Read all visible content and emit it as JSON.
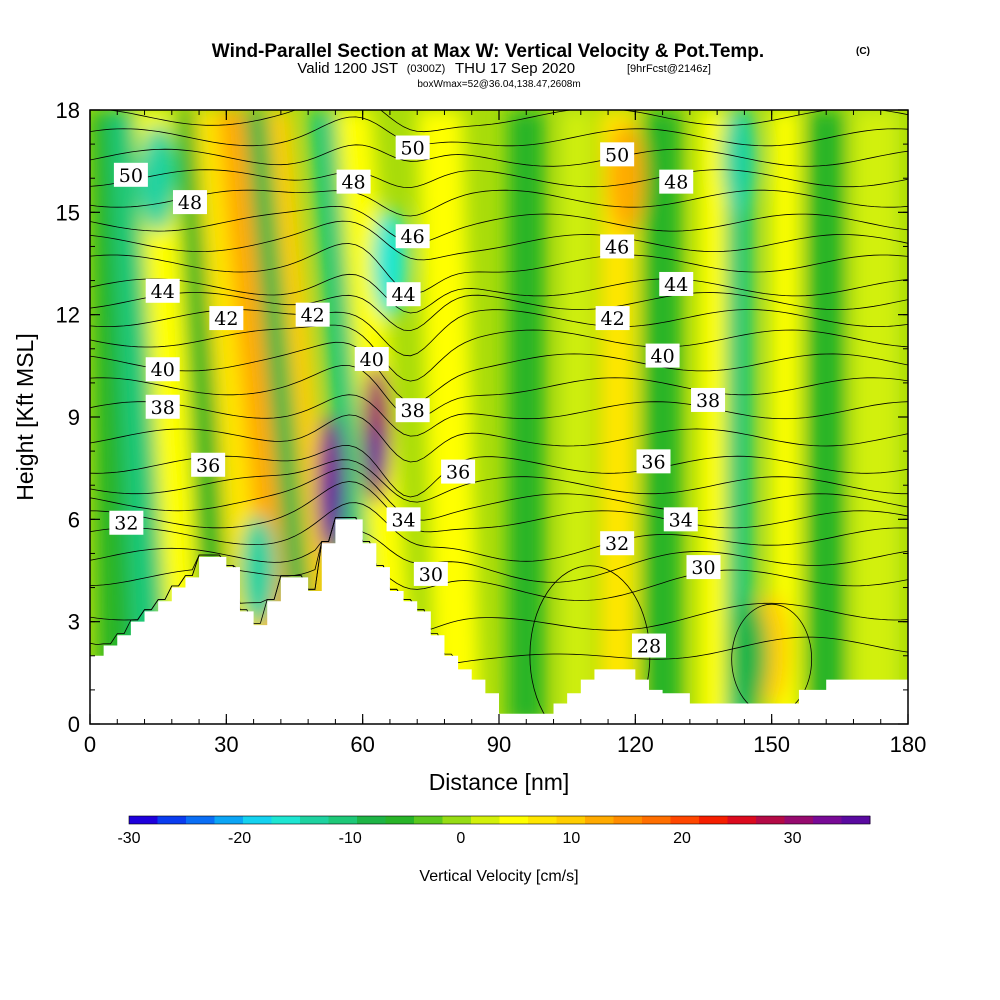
{
  "chart_data": {
    "type": "heatmap",
    "title": {
      "main": "Wind-Parallel Section at Max W: Vertical Velocity & Pot.Temp.",
      "copyright": "(C)",
      "valid_prefix": "Valid 1200 JST",
      "utc": "(0300Z)",
      "valid_date": "THU 17 Sep 2020",
      "forecast": "[9hrFcst@2146z]",
      "box_info": "boxWmax=52@36.04,138.47,2608m"
    },
    "xlabel": "Distance [nm]",
    "ylabel": "Height [Kft MSL]",
    "xlim": [
      0,
      180
    ],
    "ylim": [
      0,
      18
    ],
    "xticks": [
      "0",
      "30",
      "60",
      "90",
      "120",
      "150",
      "180"
    ],
    "yticks": [
      "0",
      "3",
      "6",
      "9",
      "12",
      "15",
      "18"
    ],
    "colorbar": {
      "label": "Vertical Velocity [cm/s]",
      "min": -30,
      "max": 37,
      "ticks": [
        "-30",
        "-20",
        "-10",
        "0",
        "10",
        "20",
        "30"
      ],
      "colors": [
        "#1e00dc",
        "#0a3cf0",
        "#0a6ef5",
        "#0ba5f5",
        "#14d2f0",
        "#1ee6d2",
        "#1ed2a0",
        "#1ec878",
        "#1eb446",
        "#28b428",
        "#5ac81e",
        "#96dc14",
        "#d2f00a",
        "#ffff00",
        "#ffe600",
        "#ffcd00",
        "#ffaa00",
        "#ff8c00",
        "#ff6e00",
        "#ff4600",
        "#f51e00",
        "#dc0a1e",
        "#b40a46",
        "#960a6e",
        "#780a96",
        "#5a0aa0"
      ]
    },
    "terrain_kft": [
      [
        0,
        2.0
      ],
      [
        3,
        2.0
      ],
      [
        3,
        2.3
      ],
      [
        6,
        2.3
      ],
      [
        6,
        2.6
      ],
      [
        9,
        2.6
      ],
      [
        9,
        3.0
      ],
      [
        12,
        3.0
      ],
      [
        12,
        3.3
      ],
      [
        15,
        3.3
      ],
      [
        15,
        3.6
      ],
      [
        18,
        3.6
      ],
      [
        18,
        4.0
      ],
      [
        21,
        4.0
      ],
      [
        21,
        4.3
      ],
      [
        24,
        4.3
      ],
      [
        24,
        4.9
      ],
      [
        30,
        4.9
      ],
      [
        30,
        4.6
      ],
      [
        33,
        4.6
      ],
      [
        33,
        3.3
      ],
      [
        36,
        3.3
      ],
      [
        36,
        2.9
      ],
      [
        39,
        2.9
      ],
      [
        39,
        3.6
      ],
      [
        42,
        3.6
      ],
      [
        42,
        4.3
      ],
      [
        48,
        4.3
      ],
      [
        48,
        3.9
      ],
      [
        51,
        3.9
      ],
      [
        51,
        5.3
      ],
      [
        54,
        5.3
      ],
      [
        54,
        6.0
      ],
      [
        60,
        6.0
      ],
      [
        60,
        5.3
      ],
      [
        63,
        5.3
      ],
      [
        63,
        4.6
      ],
      [
        66,
        4.6
      ],
      [
        66,
        3.9
      ],
      [
        69,
        3.9
      ],
      [
        69,
        3.6
      ],
      [
        72,
        3.6
      ],
      [
        72,
        3.3
      ],
      [
        75,
        3.3
      ],
      [
        75,
        2.6
      ],
      [
        78,
        2.6
      ],
      [
        78,
        2.0
      ],
      [
        81,
        2.0
      ],
      [
        81,
        1.6
      ],
      [
        84,
        1.6
      ],
      [
        84,
        1.3
      ],
      [
        87,
        1.3
      ],
      [
        87,
        0.9
      ],
      [
        90,
        0.9
      ],
      [
        90,
        0.3
      ],
      [
        102,
        0.3
      ],
      [
        102,
        0.6
      ],
      [
        105,
        0.6
      ],
      [
        105,
        0.9
      ],
      [
        108,
        0.9
      ],
      [
        108,
        1.3
      ],
      [
        111,
        1.3
      ],
      [
        111,
        1.6
      ],
      [
        120,
        1.6
      ],
      [
        120,
        1.3
      ],
      [
        123,
        1.3
      ],
      [
        123,
        1.0
      ],
      [
        126,
        1.0
      ],
      [
        126,
        0.9
      ],
      [
        132,
        0.9
      ],
      [
        132,
        0.6
      ],
      [
        156,
        0.6
      ],
      [
        156,
        1.0
      ],
      [
        162,
        1.0
      ],
      [
        162,
        1.3
      ],
      [
        180,
        1.3
      ]
    ],
    "theta_contours": [
      {
        "label": "28",
        "kft": 2.3,
        "x": 123
      },
      {
        "label": "30",
        "kft": 4.4,
        "x": 75
      },
      {
        "label": "30",
        "kft": 4.6,
        "x": 135
      },
      {
        "label": "32",
        "kft": 5.9,
        "x": 8
      },
      {
        "label": "32",
        "kft": 5.3,
        "x": 116
      },
      {
        "label": "34",
        "kft": 6.0,
        "x": 69
      },
      {
        "label": "34",
        "kft": 6.0,
        "x": 130
      },
      {
        "label": "36",
        "kft": 7.6,
        "x": 26
      },
      {
        "label": "36",
        "kft": 7.4,
        "x": 81
      },
      {
        "label": "36",
        "kft": 7.7,
        "x": 124
      },
      {
        "label": "38",
        "kft": 9.3,
        "x": 16
      },
      {
        "label": "38",
        "kft": 9.2,
        "x": 71
      },
      {
        "label": "38",
        "kft": 9.5,
        "x": 136
      },
      {
        "label": "40",
        "kft": 10.4,
        "x": 16
      },
      {
        "label": "40",
        "kft": 10.7,
        "x": 62
      },
      {
        "label": "40",
        "kft": 10.8,
        "x": 126
      },
      {
        "label": "42",
        "kft": 11.9,
        "x": 30
      },
      {
        "label": "42",
        "kft": 12.0,
        "x": 49
      },
      {
        "label": "42",
        "kft": 11.9,
        "x": 115
      },
      {
        "label": "44",
        "kft": 12.7,
        "x": 16
      },
      {
        "label": "44",
        "kft": 12.6,
        "x": 69
      },
      {
        "label": "44",
        "kft": 12.9,
        "x": 129
      },
      {
        "label": "46",
        "kft": 14.3,
        "x": 71
      },
      {
        "label": "46",
        "kft": 14.0,
        "x": 116
      },
      {
        "label": "48",
        "kft": 15.3,
        "x": 22
      },
      {
        "label": "48",
        "kft": 15.9,
        "x": 58
      },
      {
        "label": "48",
        "kft": 15.9,
        "x": 129
      },
      {
        "label": "50",
        "kft": 16.1,
        "x": 9
      },
      {
        "label": "50",
        "kft": 16.9,
        "x": 71
      },
      {
        "label": "50",
        "kft": 16.7,
        "x": 116
      }
    ],
    "w_features": [
      {
        "x": 53,
        "kft": 7.0,
        "w": 33
      },
      {
        "x": 63,
        "kft": 8.5,
        "w": 30
      },
      {
        "x": 66,
        "kft": 13.5,
        "w": -15
      },
      {
        "x": 15,
        "kft": 16.0,
        "w": -12
      },
      {
        "x": 37,
        "kft": 4.5,
        "w": -13
      },
      {
        "x": 143,
        "kft": 16.5,
        "w": -14
      },
      {
        "x": 118,
        "kft": 16.0,
        "w": 12
      },
      {
        "x": 150,
        "kft": 2.2,
        "w": 10
      },
      {
        "x": 145,
        "kft": 2.0,
        "w": -8
      }
    ]
  }
}
